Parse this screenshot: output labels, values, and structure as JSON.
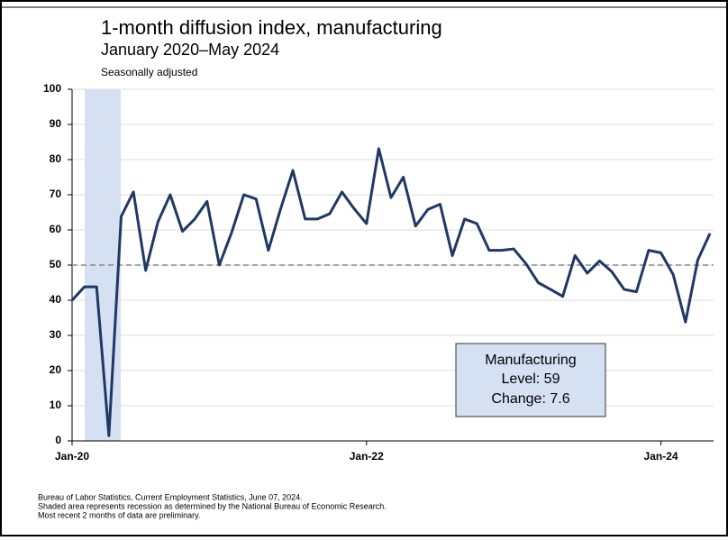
{
  "chart_data": {
    "type": "line",
    "title": "1-month diffusion index, manufacturing",
    "subtitle": "January 2020–May 2024",
    "note": "Seasonally adjusted",
    "categories": [
      "Jan-20",
      null,
      null,
      null,
      null,
      null,
      null,
      null,
      null,
      null,
      null,
      null,
      null,
      null,
      null,
      null,
      null,
      null,
      null,
      null,
      null,
      null,
      null,
      null,
      "Jan-22",
      null,
      null,
      null,
      null,
      null,
      null,
      null,
      null,
      null,
      null,
      null,
      null,
      null,
      null,
      null,
      null,
      null,
      null,
      null,
      null,
      null,
      null,
      null,
      "Jan-24",
      null,
      null,
      null,
      null
    ],
    "series": [
      {
        "name": "Manufacturing",
        "color": "#1f3864",
        "values": [
          40,
          43.8,
          43.8,
          1.5,
          63.8,
          70.8,
          48.5,
          62.3,
          70,
          59.6,
          63.1,
          68.1,
          50,
          59.2,
          70,
          68.8,
          54.2,
          66,
          76.9,
          63.1,
          63.1,
          64.6,
          70.8,
          66,
          61.8,
          83.1,
          69.2,
          75,
          61.1,
          65.8,
          67.3,
          52.7,
          63.1,
          61.8,
          54.2,
          54.2,
          54.6,
          50.4,
          45,
          43.1,
          41.1,
          52.7,
          47.7,
          51.2,
          48.1,
          43.1,
          42.4,
          54.2,
          53.5,
          47.3,
          33.8,
          51.4,
          59
        ]
      }
    ],
    "ylim": [
      0,
      100
    ],
    "yticks": [
      0,
      10,
      20,
      30,
      40,
      50,
      60,
      70,
      80,
      90,
      100
    ],
    "grid": true,
    "reference_line": 50,
    "annotation": [
      "Manufacturing",
      "Level: 59",
      "Change: 7.6"
    ],
    "footnotes": [
      "Bureau of Labor Statistics, Current Employment Statistics, June 07, 2024.",
      "Shaded area represents recession as determined by the National Bureau of Economic Research.",
      "Most recent 2 months of data are preliminary."
    ]
  }
}
